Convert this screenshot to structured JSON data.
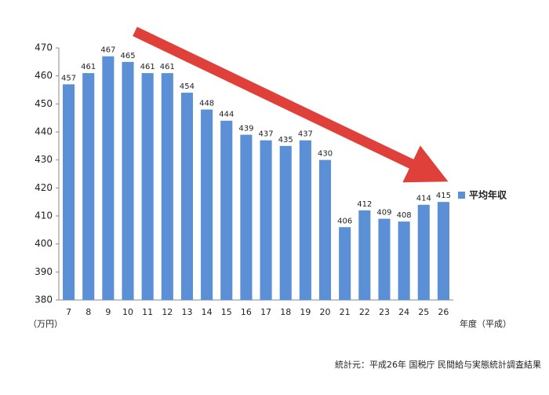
{
  "chart_data": {
    "type": "bar",
    "categories": [
      "7",
      "8",
      "9",
      "10",
      "11",
      "12",
      "13",
      "14",
      "15",
      "16",
      "17",
      "18",
      "19",
      "20",
      "21",
      "22",
      "23",
      "24",
      "25",
      "26"
    ],
    "series": [
      {
        "name": "平均年収",
        "color": "#5b8fd6",
        "values": [
          457,
          461,
          467,
          465,
          461,
          461,
          454,
          448,
          444,
          439,
          437,
          435,
          437,
          430,
          406,
          412,
          409,
          408,
          414,
          415
        ]
      }
    ],
    "ylim": [
      380,
      470
    ],
    "yticks": [
      380,
      390,
      400,
      410,
      420,
      430,
      440,
      450,
      460,
      470
    ],
    "y_label": "（万円）",
    "x_label": "年度（平成）",
    "note": "統計元：平成26年 国税庁 民間給与実態統計調査結果",
    "grid": false
  }
}
